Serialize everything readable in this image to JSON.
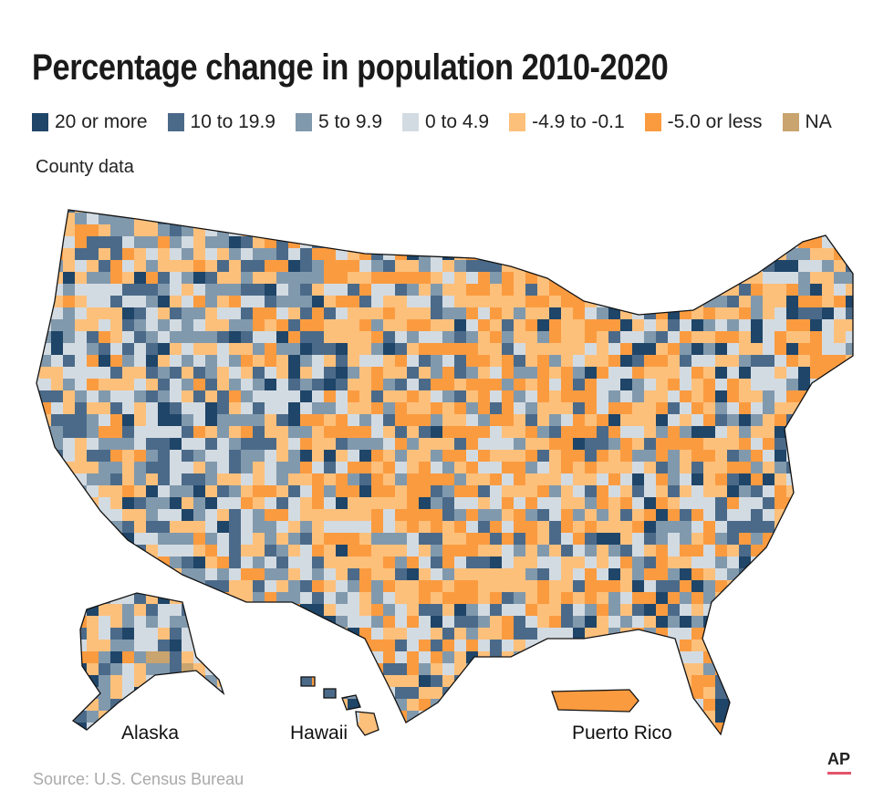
{
  "title": "Percentage change in population 2010-2020",
  "legend": [
    {
      "label": "20 or more",
      "color": "#1f4568"
    },
    {
      "label": "10 to 19.9",
      "color": "#4b6a89"
    },
    {
      "label": "5 to 9.9",
      "color": "#8199ad"
    },
    {
      "label": "0 to 4.9",
      "color": "#d3dbe2"
    },
    {
      "label": "-4.9 to -0.1",
      "color": "#fdc07b"
    },
    {
      "label": "-5.0 or less",
      "color": "#fb9b40"
    },
    {
      "label": "NA",
      "color": "#c9a46e"
    }
  ],
  "subtitle": "County data",
  "region_labels": {
    "alaska": "Alaska",
    "hawaii": "Hawaii",
    "puerto_rico": "Puerto Rico"
  },
  "source": "Source: U.S. Census Bureau",
  "logo": "AP"
}
